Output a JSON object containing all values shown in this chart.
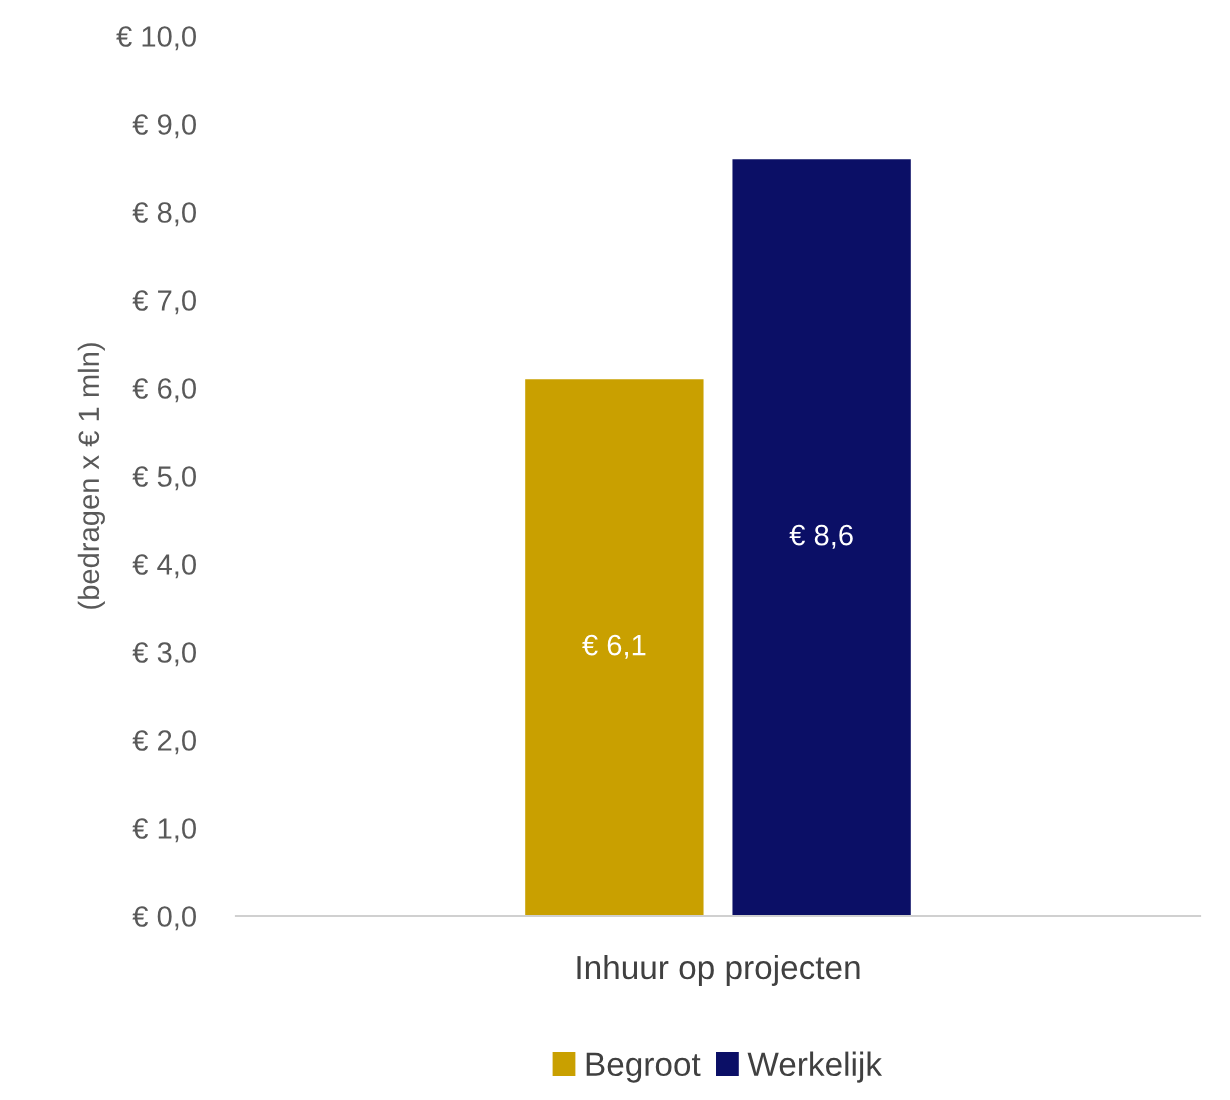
{
  "chart_data": {
    "type": "bar",
    "ylabel": "(bedragen x € 1 mln)",
    "categories": [
      "Inhuur op projecten"
    ],
    "series": [
      {
        "name": "Begroot",
        "color": "#c9a000",
        "values": [
          6.1
        ],
        "value_labels": [
          "€ 6,1"
        ]
      },
      {
        "name": "Werkelijk",
        "color": "#0b0f66",
        "values": [
          8.6
        ],
        "value_labels": [
          "€ 8,6"
        ]
      }
    ],
    "ylim": [
      0,
      10
    ],
    "yticks": [
      {
        "value": 0,
        "label": "€ 0,0"
      },
      {
        "value": 1,
        "label": "€ 1,0"
      },
      {
        "value": 2,
        "label": "€ 2,0"
      },
      {
        "value": 3,
        "label": "€ 3,0"
      },
      {
        "value": 4,
        "label": "€ 4,0"
      },
      {
        "value": 5,
        "label": "€ 5,0"
      },
      {
        "value": 6,
        "label": "€ 6,0"
      },
      {
        "value": 7,
        "label": "€ 7,0"
      },
      {
        "value": 8,
        "label": "€ 8,0"
      },
      {
        "value": 9,
        "label": "€ 9,0"
      },
      {
        "value": 10,
        "label": "€ 10,0"
      }
    ],
    "grid": false,
    "legend": "bottom"
  }
}
